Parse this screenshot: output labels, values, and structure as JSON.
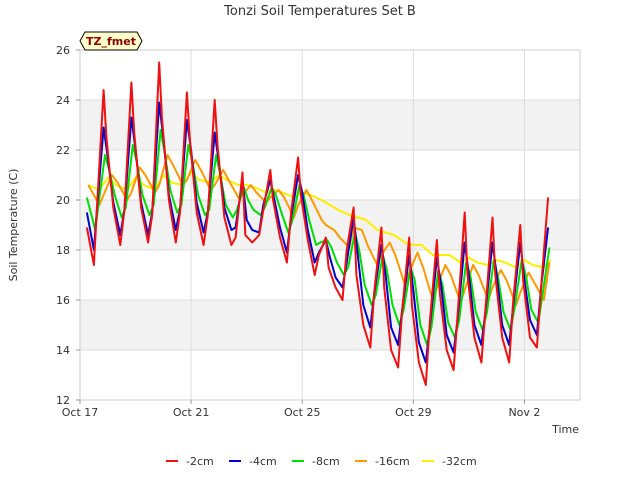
{
  "chart_data": {
    "type": "line",
    "title": "Tonzi Soil Temperatures Set B",
    "xlabel": "Time",
    "ylabel": "Soil Temperature (C)",
    "site_badge": "TZ_fmet",
    "ylim": [
      12,
      26
    ],
    "xlim": [
      0,
      18
    ],
    "x_origin_label": "Oct 17",
    "x_ticks": [
      {
        "value": 0,
        "label": "Oct 17"
      },
      {
        "value": 4,
        "label": "Oct 21"
      },
      {
        "value": 8,
        "label": "Oct 25"
      },
      {
        "value": 12,
        "label": "Oct 29"
      },
      {
        "value": 16,
        "label": "Nov 2"
      }
    ],
    "y_ticks": [
      12,
      14,
      16,
      18,
      20,
      22,
      24,
      26
    ],
    "grid": true,
    "legend_position": "bottom",
    "series": [
      {
        "name": "-2cm",
        "color": "#ee1111",
        "x": [
          0.25,
          0.5,
          0.6,
          0.85,
          0.95,
          1.2,
          1.45,
          1.6,
          1.85,
          1.95,
          2.2,
          2.45,
          2.6,
          2.85,
          2.95,
          3.2,
          3.45,
          3.6,
          3.85,
          3.95,
          4.2,
          4.45,
          4.6,
          4.85,
          4.95,
          5.2,
          5.45,
          5.6,
          5.85,
          5.95,
          6.2,
          6.45,
          6.6,
          6.85,
          6.95,
          7.2,
          7.45,
          7.6,
          7.85,
          7.95,
          8.2,
          8.45,
          8.6,
          8.85,
          8.95,
          9.2,
          9.45,
          9.6,
          9.85,
          9.95,
          10.2,
          10.45,
          10.6,
          10.85,
          10.95,
          11.2,
          11.45,
          11.6,
          11.85,
          11.95,
          12.2,
          12.45,
          12.6,
          12.85,
          12.95,
          13.2,
          13.45,
          13.6,
          13.85,
          13.95,
          14.2,
          14.45,
          14.6,
          14.85,
          14.95,
          15.2,
          15.45,
          15.6,
          15.85,
          15.95,
          16.2,
          16.45,
          16.6,
          16.85
        ],
        "y": [
          18.9,
          17.4,
          19.5,
          24.4,
          22.5,
          19.7,
          18.2,
          19.6,
          24.7,
          22.7,
          19.7,
          18.3,
          19.4,
          25.5,
          23.3,
          20.0,
          18.3,
          19.5,
          24.3,
          22.5,
          19.5,
          18.2,
          19.4,
          24.0,
          22.2,
          19.3,
          18.2,
          18.5,
          21.1,
          18.6,
          18.3,
          18.6,
          19.6,
          21.2,
          20.0,
          18.5,
          17.5,
          19.5,
          21.7,
          20.2,
          18.4,
          17.0,
          17.8,
          18.5,
          17.3,
          16.5,
          16.0,
          18.0,
          19.7,
          17.0,
          15.0,
          14.1,
          16.4,
          18.9,
          16.5,
          14.0,
          13.3,
          15.6,
          18.5,
          15.8,
          13.5,
          12.6,
          15.2,
          18.4,
          16.3,
          14.0,
          13.2,
          15.5,
          19.5,
          17.0,
          14.5,
          13.5,
          15.7,
          19.3,
          17.0,
          14.5,
          13.5,
          16.0,
          19.0,
          16.8,
          14.5,
          14.1,
          16.5,
          20.1
        ]
      },
      {
        "name": "-4cm",
        "color": "#0000cc",
        "x": [
          0.25,
          0.5,
          0.6,
          0.85,
          1.0,
          1.2,
          1.45,
          1.6,
          1.85,
          2.0,
          2.2,
          2.45,
          2.6,
          2.85,
          3.0,
          3.2,
          3.45,
          3.6,
          3.85,
          4.0,
          4.2,
          4.45,
          4.6,
          4.85,
          5.0,
          5.2,
          5.45,
          5.6,
          5.85,
          6.0,
          6.2,
          6.45,
          6.6,
          6.85,
          7.0,
          7.2,
          7.45,
          7.6,
          7.85,
          8.0,
          8.2,
          8.45,
          8.6,
          8.85,
          9.0,
          9.2,
          9.45,
          9.6,
          9.85,
          10.0,
          10.2,
          10.45,
          10.6,
          10.85,
          11.0,
          11.2,
          11.45,
          11.6,
          11.85,
          12.0,
          12.2,
          12.45,
          12.6,
          12.85,
          13.0,
          13.2,
          13.45,
          13.6,
          13.85,
          14.0,
          14.2,
          14.45,
          14.6,
          14.85,
          15.0,
          15.2,
          15.45,
          15.6,
          15.85,
          16.0,
          16.2,
          16.45,
          16.6,
          16.85
        ],
        "y": [
          19.5,
          18.0,
          19.5,
          22.9,
          21.7,
          19.9,
          18.6,
          19.6,
          23.3,
          22.0,
          19.9,
          18.6,
          19.5,
          23.9,
          22.5,
          20.2,
          18.8,
          19.6,
          23.2,
          22.0,
          19.9,
          18.7,
          19.5,
          22.7,
          21.5,
          19.7,
          18.8,
          18.9,
          20.8,
          19.2,
          18.8,
          18.7,
          19.8,
          20.8,
          20.0,
          18.9,
          17.9,
          19.3,
          21.0,
          20.3,
          18.8,
          17.5,
          17.9,
          18.4,
          17.7,
          16.9,
          16.5,
          17.5,
          19.3,
          17.8,
          15.8,
          14.9,
          16.3,
          18.2,
          17.0,
          14.9,
          14.2,
          15.6,
          17.8,
          16.4,
          14.3,
          13.5,
          15.0,
          17.7,
          16.6,
          14.6,
          13.9,
          15.3,
          18.3,
          17.0,
          15.0,
          14.2,
          15.6,
          18.3,
          17.0,
          15.0,
          14.2,
          15.8,
          18.3,
          16.8,
          15.2,
          14.6,
          16.5,
          18.9
        ]
      },
      {
        "name": "-8cm",
        "color": "#00dd00",
        "x": [
          0.25,
          0.55,
          0.65,
          0.9,
          1.05,
          1.25,
          1.5,
          1.65,
          1.9,
          2.05,
          2.25,
          2.5,
          2.65,
          2.9,
          3.05,
          3.25,
          3.5,
          3.65,
          3.9,
          4.05,
          4.25,
          4.5,
          4.65,
          4.9,
          5.05,
          5.25,
          5.5,
          5.65,
          5.9,
          6.05,
          6.25,
          6.5,
          6.65,
          6.9,
          7.05,
          7.25,
          7.5,
          7.65,
          7.9,
          8.05,
          8.25,
          8.5,
          8.65,
          8.9,
          9.05,
          9.25,
          9.5,
          9.65,
          9.9,
          10.05,
          10.25,
          10.5,
          10.65,
          10.9,
          11.05,
          11.25,
          11.5,
          11.65,
          11.9,
          12.05,
          12.25,
          12.5,
          12.65,
          12.9,
          13.05,
          13.25,
          13.5,
          13.65,
          13.9,
          14.05,
          14.25,
          14.5,
          14.65,
          14.9,
          15.05,
          15.25,
          15.5,
          15.65,
          15.9,
          16.05,
          16.25,
          16.5,
          16.65,
          16.9
        ],
        "y": [
          20.1,
          18.8,
          19.7,
          21.8,
          21.2,
          20.2,
          19.3,
          19.7,
          22.2,
          21.5,
          20.2,
          19.4,
          19.8,
          22.8,
          21.9,
          20.4,
          19.5,
          19.8,
          22.2,
          21.5,
          20.2,
          19.4,
          19.6,
          21.8,
          21.0,
          19.8,
          19.3,
          19.6,
          20.5,
          20.0,
          19.6,
          19.4,
          19.7,
          20.5,
          20.2,
          19.5,
          18.7,
          19.2,
          20.6,
          20.2,
          19.2,
          18.2,
          18.3,
          18.4,
          18.1,
          17.5,
          17.0,
          17.3,
          18.7,
          18.0,
          16.6,
          15.8,
          16.2,
          17.8,
          17.2,
          15.8,
          15.0,
          15.6,
          17.3,
          16.8,
          15.0,
          14.2,
          14.9,
          17.2,
          16.6,
          15.1,
          14.5,
          15.2,
          17.5,
          17.0,
          15.5,
          14.8,
          15.5,
          17.6,
          16.9,
          15.5,
          14.8,
          15.7,
          17.6,
          17.0,
          15.6,
          15.1,
          16.2,
          18.1
        ]
      },
      {
        "name": "-16cm",
        "color": "#ff9900",
        "x": [
          0.3,
          0.7,
          0.85,
          1.15,
          1.35,
          1.7,
          1.85,
          2.15,
          2.35,
          2.7,
          2.85,
          3.15,
          3.35,
          3.7,
          3.85,
          4.15,
          4.35,
          4.7,
          4.85,
          5.15,
          5.35,
          5.7,
          5.85,
          6.15,
          6.35,
          6.7,
          6.85,
          7.15,
          7.35,
          7.7,
          7.85,
          8.15,
          8.35,
          8.7,
          8.85,
          9.15,
          9.35,
          9.7,
          9.85,
          10.15,
          10.35,
          10.7,
          10.85,
          11.15,
          11.35,
          11.7,
          11.85,
          12.15,
          12.35,
          12.7,
          12.85,
          13.15,
          13.35,
          13.7,
          13.85,
          14.15,
          14.35,
          14.7,
          14.85,
          15.15,
          15.35,
          15.7,
          15.85,
          16.15,
          16.35,
          16.7,
          16.9
        ],
        "y": [
          20.6,
          19.8,
          20.2,
          21.0,
          20.7,
          20.0,
          20.3,
          21.3,
          21.0,
          20.3,
          20.6,
          21.8,
          21.4,
          20.6,
          20.8,
          21.6,
          21.2,
          20.4,
          20.6,
          21.2,
          20.8,
          20.1,
          20.2,
          20.6,
          20.3,
          19.9,
          20.1,
          20.4,
          20.1,
          19.3,
          19.8,
          20.4,
          20.0,
          19.2,
          19.0,
          18.8,
          18.5,
          18.1,
          18.9,
          18.8,
          18.2,
          17.4,
          17.8,
          18.3,
          17.8,
          16.6,
          17.1,
          17.9,
          17.3,
          16.0,
          16.5,
          17.4,
          17.0,
          15.9,
          16.4,
          17.4,
          17.0,
          16.0,
          16.5,
          17.2,
          16.8,
          15.8,
          16.3,
          17.1,
          16.7,
          16.0,
          17.5
        ]
      },
      {
        "name": "-32cm",
        "color": "#ffee00",
        "x": [
          0.3,
          0.7,
          1.0,
          1.3,
          1.7,
          2.0,
          2.3,
          2.7,
          3.0,
          3.3,
          3.7,
          4.0,
          4.3,
          4.7,
          5.0,
          5.3,
          5.7,
          6.0,
          6.3,
          6.7,
          7.0,
          7.3,
          7.7,
          8.0,
          8.3,
          8.7,
          9.0,
          9.3,
          9.7,
          10.0,
          10.3,
          10.7,
          11.0,
          11.3,
          11.7,
          12.0,
          12.3,
          12.7,
          13.0,
          13.3,
          13.7,
          14.0,
          14.3,
          14.7,
          15.0,
          15.3,
          15.7,
          16.0,
          16.3,
          16.7,
          16.95
        ],
        "y": [
          20.6,
          20.4,
          20.9,
          20.6,
          20.4,
          20.9,
          20.6,
          20.4,
          21.0,
          20.7,
          20.6,
          21.1,
          20.8,
          20.7,
          21.0,
          20.8,
          20.6,
          20.6,
          20.5,
          20.3,
          20.4,
          20.3,
          20.1,
          20.3,
          20.2,
          20.0,
          19.8,
          19.6,
          19.4,
          19.3,
          19.2,
          18.8,
          18.7,
          18.6,
          18.3,
          18.2,
          18.2,
          17.8,
          17.8,
          17.8,
          17.5,
          17.7,
          17.5,
          17.4,
          17.6,
          17.5,
          17.3,
          17.6,
          17.4,
          17.3,
          17.6
        ]
      }
    ]
  }
}
